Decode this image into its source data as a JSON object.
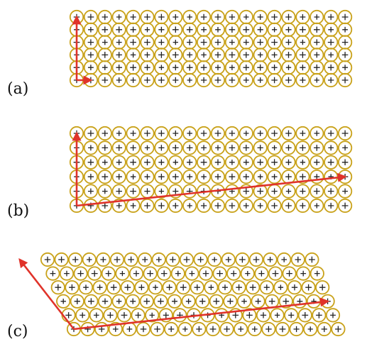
{
  "panels": [
    {
      "label": "(a)",
      "rows": 6,
      "cols": 20,
      "arrows": [
        {
          "from": [
            0,
            0
          ],
          "to": [
            0,
            5
          ]
        },
        {
          "from": [
            0,
            0
          ],
          "to": [
            1,
            0
          ]
        }
      ]
    },
    {
      "label": "(b)",
      "rows": 6,
      "cols": 20,
      "arrows": [
        {
          "from": [
            0,
            0
          ],
          "to": [
            0,
            5
          ]
        },
        {
          "from": [
            0,
            0
          ],
          "to": [
            19,
            2
          ]
        }
      ]
    },
    {
      "label": "(c)",
      "rows": 6,
      "cols": 20,
      "arrows": [
        {
          "from": [
            0,
            0
          ],
          "to": [
            -2,
            5
          ]
        },
        {
          "from": [
            0,
            0
          ],
          "to": [
            19,
            2
          ]
        }
      ]
    }
  ],
  "colors": {
    "circle_stroke": "#c9a21a",
    "plus": "#222222",
    "arrow": "#e0332a"
  }
}
